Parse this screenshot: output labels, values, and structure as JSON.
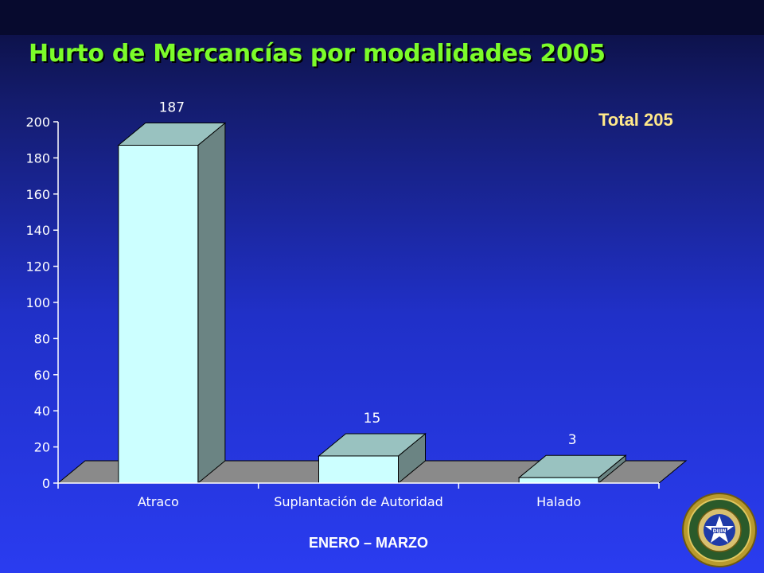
{
  "slide": {
    "title": "Hurto de Mercancías por modalidades 2005",
    "total_label": "Total 205",
    "footer": "ENERO – MARZO"
  },
  "logo": {
    "icon": "police-seal-icon",
    "text_top": "POLICIA NACIONAL",
    "text_center": "DIJIN",
    "text_ring": "DIRECCION CENTRAL DE POLICIA JUDICIAL E INTELIGENCIA"
  },
  "colors": {
    "title": "#7cfc2a",
    "total": "#ffe88a",
    "bar_front": "#ccffff",
    "bar_top": "#99c2c0",
    "bar_side": "#6b8483",
    "floor": "#8a8a8a",
    "axis": "#ffffff"
  },
  "chart_data": {
    "type": "bar",
    "categories": [
      "Atraco",
      "Suplantación de Autoridad",
      "Halado"
    ],
    "values": [
      187,
      15,
      3
    ],
    "data_labels": [
      "187",
      "15",
      "3"
    ],
    "title": "",
    "xlabel": "",
    "ylabel": "",
    "ylim": [
      0,
      200
    ],
    "y_ticks": [
      0,
      20,
      40,
      60,
      80,
      100,
      120,
      140,
      160,
      180,
      200
    ],
    "grid": false,
    "style": "3d-column",
    "legend": "none"
  }
}
